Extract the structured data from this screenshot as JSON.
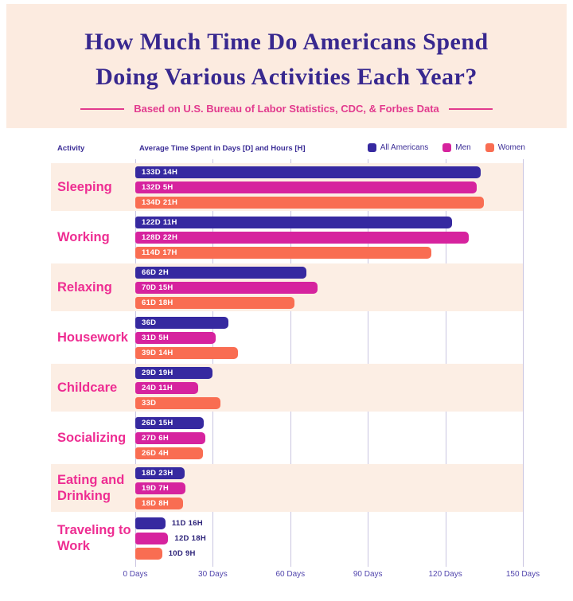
{
  "header": {
    "title_line1": "How Much Time Do Americans Spend",
    "title_line2": "Doing Various Activities Each Year?",
    "subtitle": "Based on U.S. Bureau of Labor Statistics, CDC, & Forbes Data"
  },
  "columns": {
    "activity_label": "Activity",
    "avg_label": "Average Time Spent in Days [D] and Hours [H]"
  },
  "colors": {
    "header_bg": "#fcebe0",
    "row_band": "#fceee4",
    "title": "#38288f",
    "subtitle": "#e23a8e",
    "activity_label": "#ee2d92",
    "gridline": "#c9c4e0",
    "axis_text": "#5246ad",
    "outside_value_text": "#2b2178"
  },
  "chart_data": {
    "type": "bar",
    "orientation": "horizontal",
    "title": "How Much Time Do Americans Spend Doing Various Activities Each Year?",
    "xlabel": "Days",
    "ylabel": "Activity",
    "xmax": 150,
    "grid": true,
    "legend_position": "top-right",
    "x_ticks": [
      "0 Days",
      "30 Days",
      "60 Days",
      "90 Days",
      "120 Days",
      "150 Days"
    ],
    "x_tick_values": [
      0,
      30,
      60,
      90,
      120,
      150
    ],
    "categories": [
      "Sleeping",
      "Working",
      "Relaxing",
      "Housework",
      "Childcare",
      "Socializing",
      "Eating and Drinking",
      "Traveling to Work"
    ],
    "outside_label_category_indexes": [
      7
    ],
    "series": [
      {
        "name": "All Americans",
        "color": "#3629a0",
        "values_days": [
          133.58,
          122.46,
          66.08,
          36,
          29.79,
          26.63,
          18.96,
          11.67
        ],
        "labels": [
          "133D 14H",
          "122D 11H",
          "66D 2H",
          "36D",
          "29D 19H",
          "26D 15H",
          "18D 23H",
          "11D 16H"
        ]
      },
      {
        "name": "Men",
        "color": "#d6239e",
        "values_days": [
          132.21,
          128.92,
          70.63,
          31.21,
          24.46,
          27.25,
          19.29,
          12.75
        ],
        "labels": [
          "132D 5H",
          "128D 22H",
          "70D 15H",
          "31D 5H",
          "24D 11H",
          "27D 6H",
          "19D 7H",
          "12D 18H"
        ]
      },
      {
        "name": "Women",
        "color": "#f96d52",
        "values_days": [
          134.88,
          114.71,
          61.75,
          39.58,
          33,
          26.17,
          18.33,
          10.38
        ],
        "labels": [
          "134D 21H",
          "114D 17H",
          "61D 18H",
          "39D 14H",
          "33D",
          "26D 4H",
          "18D 8H",
          "10D 9H"
        ]
      }
    ]
  }
}
